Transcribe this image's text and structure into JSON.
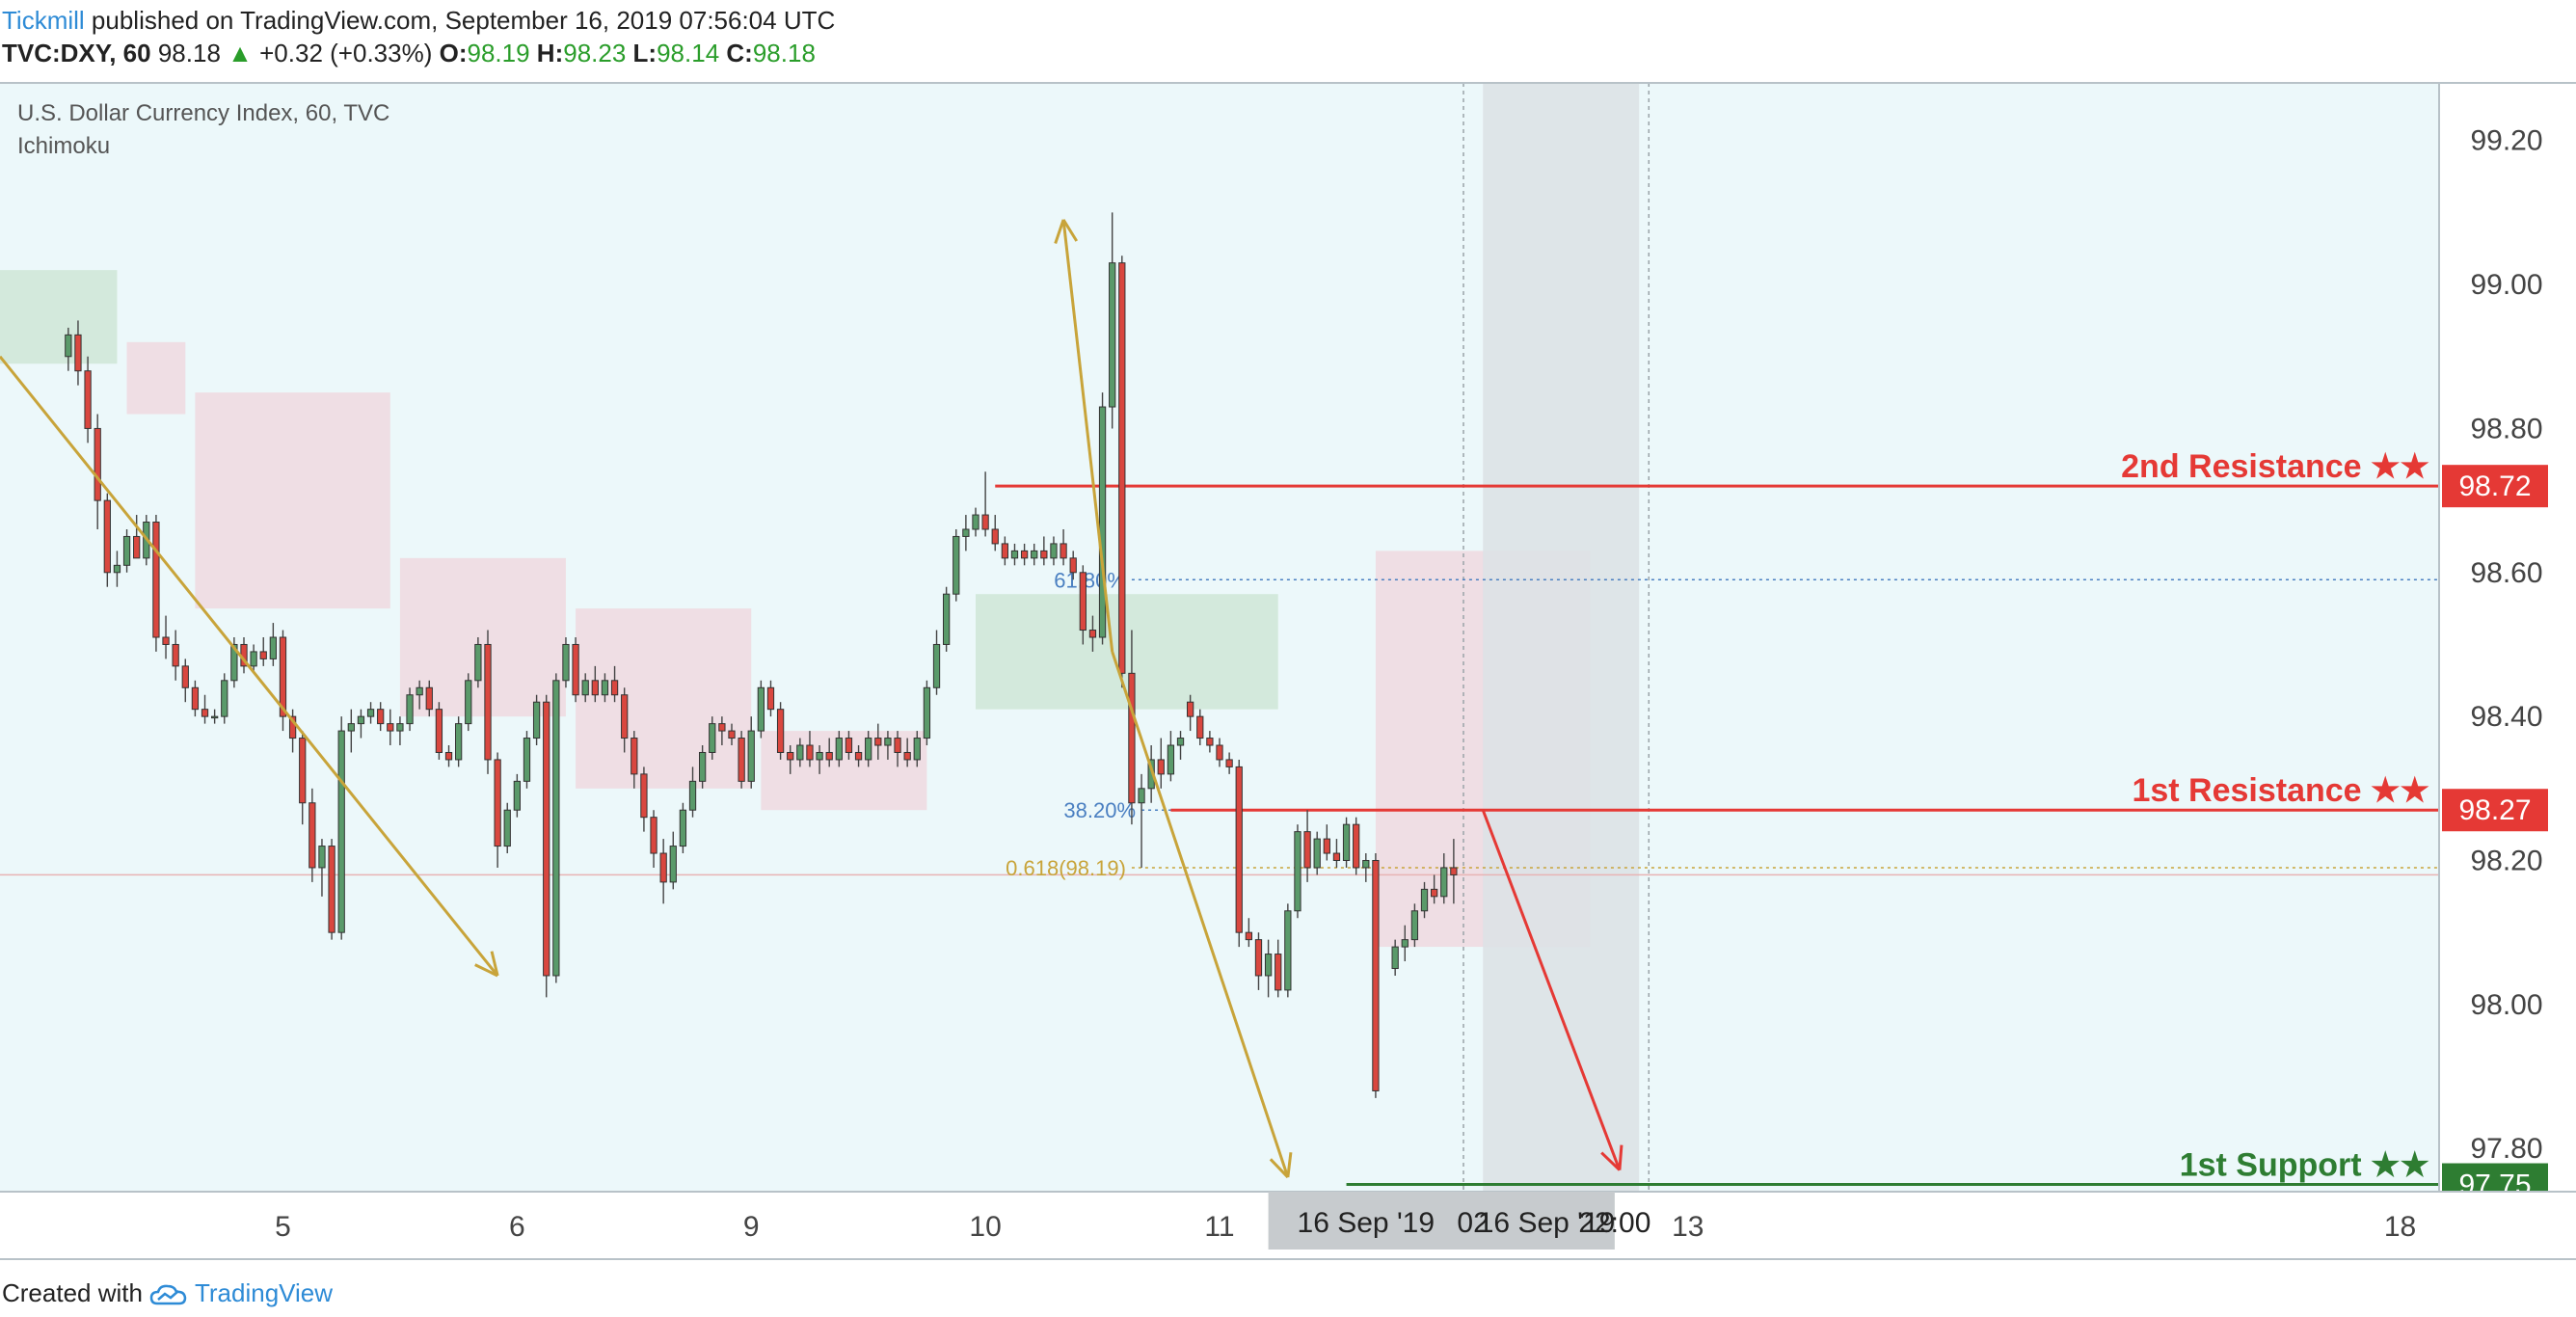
{
  "header": {
    "author": "Tickmill",
    "published_text": "published on TradingView.com, September 16, 2019 07:56:04 UTC",
    "symbol": "TVC:DXY, 60",
    "last": "98.18",
    "change": "+0.32 (+0.33%)",
    "open_label": "O:",
    "open": "98.19",
    "high_label": "H:",
    "high": "98.23",
    "low_label": "L:",
    "low": "98.14",
    "close_label": "C:",
    "close": "98.18"
  },
  "chart_info": {
    "title": "U.S. Dollar Currency Index, 60, TVC",
    "indicator": "Ichimoku"
  },
  "footer": {
    "created_with": "Created with",
    "brand": "TradingView"
  },
  "colors": {
    "background": "#ecf8fa",
    "bull": "#5a9a6a",
    "bear": "#d9473f",
    "resistance": "#e53935",
    "support": "#2e7d32",
    "trend_arrow": "#c8a43a",
    "cloud_bull": "#cfe6d6",
    "cloud_bear": "#f0d9df",
    "highlight_band": "#dde2e5"
  },
  "chart_data": {
    "type": "candlestick",
    "ylim": [
      97.74,
      99.28
    ],
    "y_ticks": [
      "99.20",
      "99.00",
      "98.80",
      "98.60",
      "98.40",
      "98.20",
      "98.00",
      "97.80"
    ],
    "x_ticks": [
      {
        "label": "5",
        "t": 29
      },
      {
        "label": "6",
        "t": 53
      },
      {
        "label": "9",
        "t": 77
      },
      {
        "label": "10",
        "t": 101
      },
      {
        "label": "11",
        "t": 125
      },
      {
        "label": "12",
        "t": 149
      },
      {
        "label": "13",
        "t": 173
      },
      {
        "label": "18",
        "t": 246
      }
    ],
    "time_badges": [
      "16 Sep '19",
      "02",
      "16 Sep '19",
      "22:00"
    ],
    "levels": [
      {
        "name": "2nd Resistance ★★",
        "value": 98.72,
        "label": "98.72",
        "color": "#e53935"
      },
      {
        "name": "1st Resistance ★★",
        "value": 98.27,
        "label": "98.27",
        "color": "#e53935"
      },
      {
        "name": "1st Support ★★",
        "value": 97.75,
        "label": "97.75",
        "color": "#2e7d32"
      }
    ],
    "fib_levels": [
      {
        "label": "61.80%",
        "value": 98.59
      },
      {
        "label": "38.20%",
        "value": 98.27
      },
      {
        "label": "0.618(98.19)",
        "value": 98.19
      }
    ],
    "current_price": 98.18,
    "candles": [
      {
        "t": 7,
        "o": 98.9,
        "h": 98.94,
        "l": 98.88,
        "c": 98.93
      },
      {
        "t": 8,
        "o": 98.93,
        "h": 98.95,
        "l": 98.86,
        "c": 98.88
      },
      {
        "t": 9,
        "o": 98.88,
        "h": 98.9,
        "l": 98.78,
        "c": 98.8
      },
      {
        "t": 10,
        "o": 98.8,
        "h": 98.82,
        "l": 98.66,
        "c": 98.7
      },
      {
        "t": 11,
        "o": 98.7,
        "h": 98.71,
        "l": 98.58,
        "c": 98.6
      },
      {
        "t": 12,
        "o": 98.6,
        "h": 98.63,
        "l": 98.58,
        "c": 98.61
      },
      {
        "t": 13,
        "o": 98.61,
        "h": 98.66,
        "l": 98.6,
        "c": 98.65
      },
      {
        "t": 14,
        "o": 98.65,
        "h": 98.68,
        "l": 98.62,
        "c": 98.62
      },
      {
        "t": 15,
        "o": 98.62,
        "h": 98.68,
        "l": 98.61,
        "c": 98.67
      },
      {
        "t": 16,
        "o": 98.67,
        "h": 98.68,
        "l": 98.49,
        "c": 98.51
      },
      {
        "t": 17,
        "o": 98.51,
        "h": 98.54,
        "l": 98.48,
        "c": 98.5
      },
      {
        "t": 18,
        "o": 98.5,
        "h": 98.52,
        "l": 98.45,
        "c": 98.47
      },
      {
        "t": 19,
        "o": 98.47,
        "h": 98.48,
        "l": 98.42,
        "c": 98.44
      },
      {
        "t": 20,
        "o": 98.44,
        "h": 98.45,
        "l": 98.4,
        "c": 98.41
      },
      {
        "t": 21,
        "o": 98.41,
        "h": 98.43,
        "l": 98.39,
        "c": 98.4
      },
      {
        "t": 22,
        "o": 98.4,
        "h": 98.41,
        "l": 98.39,
        "c": 98.4
      },
      {
        "t": 23,
        "o": 98.4,
        "h": 98.46,
        "l": 98.39,
        "c": 98.45
      },
      {
        "t": 24,
        "o": 98.45,
        "h": 98.51,
        "l": 98.44,
        "c": 98.5
      },
      {
        "t": 25,
        "o": 98.5,
        "h": 98.51,
        "l": 98.46,
        "c": 98.47
      },
      {
        "t": 26,
        "o": 98.47,
        "h": 98.5,
        "l": 98.46,
        "c": 98.49
      },
      {
        "t": 27,
        "o": 98.49,
        "h": 98.51,
        "l": 98.47,
        "c": 98.48
      },
      {
        "t": 28,
        "o": 98.48,
        "h": 98.53,
        "l": 98.47,
        "c": 98.51
      },
      {
        "t": 29,
        "o": 98.51,
        "h": 98.52,
        "l": 98.38,
        "c": 98.4
      },
      {
        "t": 30,
        "o": 98.4,
        "h": 98.41,
        "l": 98.35,
        "c": 98.37
      },
      {
        "t": 31,
        "o": 98.37,
        "h": 98.38,
        "l": 98.25,
        "c": 98.28
      },
      {
        "t": 32,
        "o": 98.28,
        "h": 98.3,
        "l": 98.17,
        "c": 98.19
      },
      {
        "t": 33,
        "o": 98.19,
        "h": 98.23,
        "l": 98.15,
        "c": 98.22
      },
      {
        "t": 34,
        "o": 98.22,
        "h": 98.23,
        "l": 98.09,
        "c": 98.1
      },
      {
        "t": 35,
        "o": 98.1,
        "h": 98.4,
        "l": 98.09,
        "c": 98.38
      },
      {
        "t": 36,
        "o": 98.38,
        "h": 98.41,
        "l": 98.35,
        "c": 98.39
      },
      {
        "t": 37,
        "o": 98.39,
        "h": 98.41,
        "l": 98.37,
        "c": 98.4
      },
      {
        "t": 38,
        "o": 98.4,
        "h": 98.42,
        "l": 98.39,
        "c": 98.41
      },
      {
        "t": 39,
        "o": 98.41,
        "h": 98.42,
        "l": 98.38,
        "c": 98.39
      },
      {
        "t": 40,
        "o": 98.39,
        "h": 98.41,
        "l": 98.36,
        "c": 98.38
      },
      {
        "t": 41,
        "o": 98.38,
        "h": 98.4,
        "l": 98.36,
        "c": 98.39
      },
      {
        "t": 42,
        "o": 98.39,
        "h": 98.44,
        "l": 98.38,
        "c": 98.43
      },
      {
        "t": 43,
        "o": 98.43,
        "h": 98.45,
        "l": 98.41,
        "c": 98.44
      },
      {
        "t": 44,
        "o": 98.44,
        "h": 98.45,
        "l": 98.4,
        "c": 98.41
      },
      {
        "t": 45,
        "o": 98.41,
        "h": 98.42,
        "l": 98.34,
        "c": 98.35
      },
      {
        "t": 46,
        "o": 98.35,
        "h": 98.36,
        "l": 98.33,
        "c": 98.34
      },
      {
        "t": 47,
        "o": 98.34,
        "h": 98.4,
        "l": 98.33,
        "c": 98.39
      },
      {
        "t": 48,
        "o": 98.39,
        "h": 98.46,
        "l": 98.38,
        "c": 98.45
      },
      {
        "t": 49,
        "o": 98.45,
        "h": 98.51,
        "l": 98.44,
        "c": 98.5
      },
      {
        "t": 50,
        "o": 98.5,
        "h": 98.52,
        "l": 98.32,
        "c": 98.34
      },
      {
        "t": 51,
        "o": 98.34,
        "h": 98.35,
        "l": 98.19,
        "c": 98.22
      },
      {
        "t": 52,
        "o": 98.22,
        "h": 98.28,
        "l": 98.21,
        "c": 98.27
      },
      {
        "t": 53,
        "o": 98.27,
        "h": 98.32,
        "l": 98.26,
        "c": 98.31
      },
      {
        "t": 54,
        "o": 98.31,
        "h": 98.38,
        "l": 98.3,
        "c": 98.37
      },
      {
        "t": 55,
        "o": 98.37,
        "h": 98.43,
        "l": 98.36,
        "c": 98.42
      },
      {
        "t": 56,
        "o": 98.42,
        "h": 98.43,
        "l": 98.01,
        "c": 98.04
      },
      {
        "t": 57,
        "o": 98.04,
        "h": 98.46,
        "l": 98.03,
        "c": 98.45
      },
      {
        "t": 58,
        "o": 98.45,
        "h": 98.51,
        "l": 98.44,
        "c": 98.5
      },
      {
        "t": 59,
        "o": 98.5,
        "h": 98.51,
        "l": 98.42,
        "c": 98.43
      },
      {
        "t": 60,
        "o": 98.43,
        "h": 98.46,
        "l": 98.42,
        "c": 98.45
      },
      {
        "t": 61,
        "o": 98.45,
        "h": 98.47,
        "l": 98.42,
        "c": 98.43
      },
      {
        "t": 62,
        "o": 98.43,
        "h": 98.46,
        "l": 98.42,
        "c": 98.45
      },
      {
        "t": 63,
        "o": 98.45,
        "h": 98.47,
        "l": 98.42,
        "c": 98.43
      },
      {
        "t": 64,
        "o": 98.43,
        "h": 98.44,
        "l": 98.35,
        "c": 98.37
      },
      {
        "t": 65,
        "o": 98.37,
        "h": 98.38,
        "l": 98.3,
        "c": 98.32
      },
      {
        "t": 66,
        "o": 98.32,
        "h": 98.33,
        "l": 98.24,
        "c": 98.26
      },
      {
        "t": 67,
        "o": 98.26,
        "h": 98.27,
        "l": 98.19,
        "c": 98.21
      },
      {
        "t": 68,
        "o": 98.21,
        "h": 98.23,
        "l": 98.14,
        "c": 98.17
      },
      {
        "t": 69,
        "o": 98.17,
        "h": 98.24,
        "l": 98.16,
        "c": 98.22
      },
      {
        "t": 70,
        "o": 98.22,
        "h": 98.28,
        "l": 98.21,
        "c": 98.27
      },
      {
        "t": 71,
        "o": 98.27,
        "h": 98.33,
        "l": 98.26,
        "c": 98.31
      },
      {
        "t": 72,
        "o": 98.31,
        "h": 98.36,
        "l": 98.3,
        "c": 98.35
      },
      {
        "t": 73,
        "o": 98.35,
        "h": 98.4,
        "l": 98.34,
        "c": 98.39
      },
      {
        "t": 74,
        "o": 98.39,
        "h": 98.4,
        "l": 98.36,
        "c": 98.38
      },
      {
        "t": 75,
        "o": 98.38,
        "h": 98.39,
        "l": 98.36,
        "c": 98.37
      },
      {
        "t": 76,
        "o": 98.37,
        "h": 98.38,
        "l": 98.3,
        "c": 98.31
      },
      {
        "t": 77,
        "o": 98.31,
        "h": 98.4,
        "l": 98.3,
        "c": 98.38
      },
      {
        "t": 78,
        "o": 98.38,
        "h": 98.45,
        "l": 98.37,
        "c": 98.44
      },
      {
        "t": 79,
        "o": 98.44,
        "h": 98.45,
        "l": 98.4,
        "c": 98.41
      },
      {
        "t": 80,
        "o": 98.41,
        "h": 98.42,
        "l": 98.34,
        "c": 98.35
      },
      {
        "t": 81,
        "o": 98.35,
        "h": 98.36,
        "l": 98.32,
        "c": 98.34
      },
      {
        "t": 82,
        "o": 98.34,
        "h": 98.37,
        "l": 98.33,
        "c": 98.36
      },
      {
        "t": 83,
        "o": 98.36,
        "h": 98.38,
        "l": 98.33,
        "c": 98.34
      },
      {
        "t": 84,
        "o": 98.34,
        "h": 98.36,
        "l": 98.32,
        "c": 98.35
      },
      {
        "t": 85,
        "o": 98.35,
        "h": 98.37,
        "l": 98.33,
        "c": 98.34
      },
      {
        "t": 86,
        "o": 98.34,
        "h": 98.38,
        "l": 98.33,
        "c": 98.37
      },
      {
        "t": 87,
        "o": 98.37,
        "h": 98.38,
        "l": 98.34,
        "c": 98.35
      },
      {
        "t": 88,
        "o": 98.35,
        "h": 98.36,
        "l": 98.33,
        "c": 98.34
      },
      {
        "t": 89,
        "o": 98.34,
        "h": 98.38,
        "l": 98.33,
        "c": 98.37
      },
      {
        "t": 90,
        "o": 98.37,
        "h": 98.39,
        "l": 98.34,
        "c": 98.36
      },
      {
        "t": 91,
        "o": 98.36,
        "h": 98.38,
        "l": 98.34,
        "c": 98.37
      },
      {
        "t": 92,
        "o": 98.37,
        "h": 98.38,
        "l": 98.33,
        "c": 98.35
      },
      {
        "t": 93,
        "o": 98.35,
        "h": 98.37,
        "l": 98.33,
        "c": 98.34
      },
      {
        "t": 94,
        "o": 98.34,
        "h": 98.38,
        "l": 98.33,
        "c": 98.37
      },
      {
        "t": 95,
        "o": 98.37,
        "h": 98.45,
        "l": 98.36,
        "c": 98.44
      },
      {
        "t": 96,
        "o": 98.44,
        "h": 98.52,
        "l": 98.43,
        "c": 98.5
      },
      {
        "t": 97,
        "o": 98.5,
        "h": 98.58,
        "l": 98.49,
        "c": 98.57
      },
      {
        "t": 98,
        "o": 98.57,
        "h": 98.66,
        "l": 98.56,
        "c": 98.65
      },
      {
        "t": 99,
        "o": 98.65,
        "h": 98.68,
        "l": 98.63,
        "c": 98.66
      },
      {
        "t": 100,
        "o": 98.66,
        "h": 98.69,
        "l": 98.65,
        "c": 98.68
      },
      {
        "t": 101,
        "o": 98.68,
        "h": 98.74,
        "l": 98.65,
        "c": 98.66
      },
      {
        "t": 102,
        "o": 98.66,
        "h": 98.68,
        "l": 98.63,
        "c": 98.64
      },
      {
        "t": 103,
        "o": 98.64,
        "h": 98.65,
        "l": 98.61,
        "c": 98.62
      },
      {
        "t": 104,
        "o": 98.62,
        "h": 98.64,
        "l": 98.61,
        "c": 98.63
      },
      {
        "t": 105,
        "o": 98.63,
        "h": 98.64,
        "l": 98.61,
        "c": 98.62
      },
      {
        "t": 106,
        "o": 98.62,
        "h": 98.64,
        "l": 98.61,
        "c": 98.63
      },
      {
        "t": 107,
        "o": 98.63,
        "h": 98.65,
        "l": 98.61,
        "c": 98.62
      },
      {
        "t": 108,
        "o": 98.62,
        "h": 98.65,
        "l": 98.61,
        "c": 98.64
      },
      {
        "t": 109,
        "o": 98.64,
        "h": 98.66,
        "l": 98.61,
        "c": 98.62
      },
      {
        "t": 110,
        "o": 98.62,
        "h": 98.63,
        "l": 98.59,
        "c": 98.6
      },
      {
        "t": 111,
        "o": 98.6,
        "h": 98.61,
        "l": 98.5,
        "c": 98.52
      },
      {
        "t": 112,
        "o": 98.52,
        "h": 98.54,
        "l": 98.49,
        "c": 98.51
      },
      {
        "t": 113,
        "o": 98.51,
        "h": 98.85,
        "l": 98.5,
        "c": 98.83
      },
      {
        "t": 114,
        "o": 98.83,
        "h": 99.1,
        "l": 98.8,
        "c": 99.03
      },
      {
        "t": 115,
        "o": 99.03,
        "h": 99.04,
        "l": 98.44,
        "c": 98.46
      },
      {
        "t": 116,
        "o": 98.46,
        "h": 98.52,
        "l": 98.25,
        "c": 98.28
      },
      {
        "t": 117,
        "o": 98.28,
        "h": 98.32,
        "l": 98.19,
        "c": 98.3
      },
      {
        "t": 118,
        "o": 98.3,
        "h": 98.36,
        "l": 98.28,
        "c": 98.34
      },
      {
        "t": 119,
        "o": 98.34,
        "h": 98.37,
        "l": 98.3,
        "c": 98.32
      },
      {
        "t": 120,
        "o": 98.32,
        "h": 98.38,
        "l": 98.31,
        "c": 98.36
      },
      {
        "t": 121,
        "o": 98.36,
        "h": 98.38,
        "l": 98.34,
        "c": 98.37
      },
      {
        "t": 122,
        "o": 98.42,
        "h": 98.43,
        "l": 98.38,
        "c": 98.4
      },
      {
        "t": 123,
        "o": 98.4,
        "h": 98.41,
        "l": 98.36,
        "c": 98.37
      },
      {
        "t": 124,
        "o": 98.37,
        "h": 98.38,
        "l": 98.35,
        "c": 98.36
      },
      {
        "t": 125,
        "o": 98.36,
        "h": 98.37,
        "l": 98.33,
        "c": 98.34
      },
      {
        "t": 126,
        "o": 98.34,
        "h": 98.35,
        "l": 98.32,
        "c": 98.33
      },
      {
        "t": 127,
        "o": 98.33,
        "h": 98.34,
        "l": 98.08,
        "c": 98.1
      },
      {
        "t": 128,
        "o": 98.1,
        "h": 98.12,
        "l": 98.08,
        "c": 98.09
      },
      {
        "t": 129,
        "o": 98.09,
        "h": 98.1,
        "l": 98.02,
        "c": 98.04
      },
      {
        "t": 130,
        "o": 98.04,
        "h": 98.09,
        "l": 98.01,
        "c": 98.07
      },
      {
        "t": 131,
        "o": 98.07,
        "h": 98.09,
        "l": 98.01,
        "c": 98.02
      },
      {
        "t": 132,
        "o": 98.02,
        "h": 98.14,
        "l": 98.01,
        "c": 98.13
      },
      {
        "t": 133,
        "o": 98.13,
        "h": 98.25,
        "l": 98.12,
        "c": 98.24
      },
      {
        "t": 134,
        "o": 98.24,
        "h": 98.27,
        "l": 98.17,
        "c": 98.19
      },
      {
        "t": 135,
        "o": 98.19,
        "h": 98.24,
        "l": 98.18,
        "c": 98.23
      },
      {
        "t": 136,
        "o": 98.23,
        "h": 98.25,
        "l": 98.2,
        "c": 98.21
      },
      {
        "t": 137,
        "o": 98.21,
        "h": 98.23,
        "l": 98.19,
        "c": 98.2
      },
      {
        "t": 138,
        "o": 98.2,
        "h": 98.26,
        "l": 98.19,
        "c": 98.25
      },
      {
        "t": 139,
        "o": 98.25,
        "h": 98.26,
        "l": 98.18,
        "c": 98.19
      },
      {
        "t": 140,
        "o": 98.19,
        "h": 98.21,
        "l": 98.17,
        "c": 98.2
      },
      {
        "t": 141,
        "o": 98.2,
        "h": 98.21,
        "l": 97.87,
        "c": 97.88
      },
      {
        "t": 143,
        "o": 98.05,
        "h": 98.09,
        "l": 98.04,
        "c": 98.08
      },
      {
        "t": 144,
        "o": 98.08,
        "h": 98.11,
        "l": 98.06,
        "c": 98.09
      },
      {
        "t": 145,
        "o": 98.09,
        "h": 98.14,
        "l": 98.08,
        "c": 98.13
      },
      {
        "t": 146,
        "o": 98.13,
        "h": 98.17,
        "l": 98.12,
        "c": 98.16
      },
      {
        "t": 147,
        "o": 98.16,
        "h": 98.18,
        "l": 98.14,
        "c": 98.15
      },
      {
        "t": 148,
        "o": 98.15,
        "h": 98.21,
        "l": 98.14,
        "c": 98.19
      },
      {
        "t": 149,
        "o": 98.19,
        "h": 98.23,
        "l": 98.14,
        "c": 98.18
      }
    ],
    "cloud": {
      "bull": [
        {
          "t0": 0,
          "t1": 12,
          "top": 99.02,
          "bot": 98.89
        },
        {
          "t0": 100,
          "t1": 131,
          "top": 98.57,
          "bot": 98.41
        }
      ],
      "bear": [
        {
          "t0": 13,
          "t1": 19,
          "top": 98.92,
          "bot": 98.82
        },
        {
          "t0": 20,
          "t1": 40,
          "top": 98.85,
          "bot": 98.55
        },
        {
          "t0": 41,
          "t1": 58,
          "top": 98.62,
          "bot": 98.4
        },
        {
          "t0": 59,
          "t1": 77,
          "top": 98.55,
          "bot": 98.3
        },
        {
          "t0": 78,
          "t1": 95,
          "top": 98.38,
          "bot": 98.27
        },
        {
          "t0": 141,
          "t1": 163,
          "top": 98.63,
          "bot": 98.08
        }
      ]
    }
  }
}
